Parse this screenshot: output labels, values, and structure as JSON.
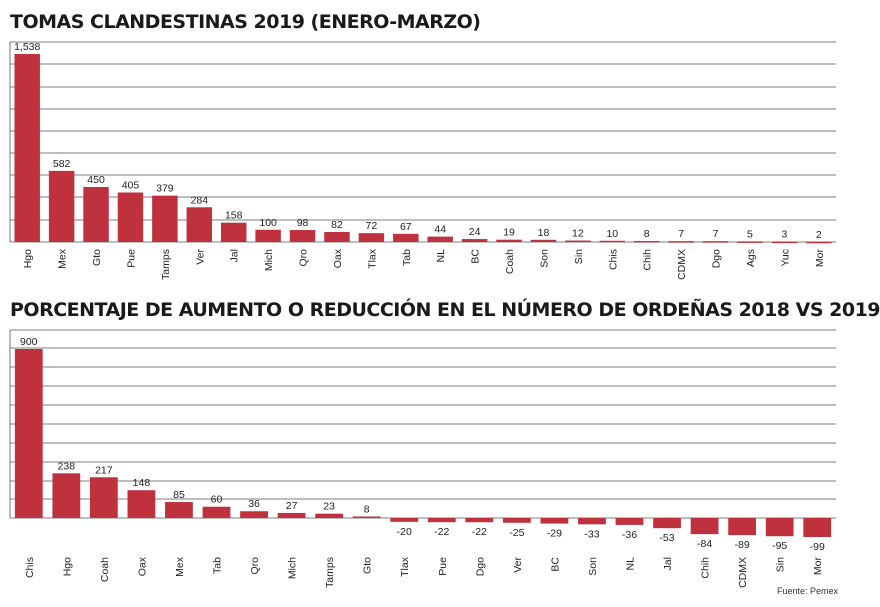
{
  "chart_data": [
    {
      "type": "bar",
      "title": "TOMAS CLANDESTINAS 2019 (ENERO-MARZO)",
      "categories": [
        "Hgo",
        "Mex",
        "Gto",
        "Pue",
        "Tamps",
        "Ver",
        "Jal",
        "Mich",
        "Qro",
        "Oax",
        "Tlax",
        "Tab",
        "NL",
        "BC",
        "Coah",
        "Son",
        "Sin",
        "Chis",
        "Chih",
        "CDMX",
        "Dgo",
        "Ags",
        "Yuc",
        "Mor"
      ],
      "values": [
        1538,
        582,
        450,
        405,
        379,
        284,
        158,
        100,
        98,
        82,
        72,
        67,
        44,
        24,
        19,
        18,
        12,
        10,
        8,
        7,
        7,
        5,
        3,
        2
      ],
      "value_labels": [
        "1,538",
        "582",
        "450",
        "405",
        "379",
        "284",
        "158",
        "100",
        "98",
        "82",
        "72",
        "67",
        "44",
        "24",
        "19",
        "18",
        "12",
        "10",
        "8",
        "7",
        "7",
        "5",
        "3",
        "2"
      ],
      "ylim": [
        0,
        1538
      ],
      "grid": true,
      "bar_color": "#c0313e"
    },
    {
      "type": "bar",
      "title": "PORCENTAJE DE AUMENTO O REDUCCIÓN EN EL NÚMERO DE ORDEÑAS 2018 VS 2019",
      "categories": [
        "Chis",
        "Hgo",
        "Coah",
        "Oax",
        "Mex",
        "Tab",
        "Qro",
        "Mich",
        "Tamps",
        "Gto",
        "Tlax",
        "Pue",
        "Dgo",
        "Ver",
        "BC",
        "Son",
        "NL",
        "Jal",
        "Chih",
        "CDMX",
        "Sin",
        "Mor"
      ],
      "values": [
        900,
        238,
        217,
        148,
        85,
        60,
        36,
        27,
        23,
        8,
        -20,
        -22,
        -22,
        -25,
        -29,
        -33,
        -36,
        -53,
        -84,
        -89,
        -95,
        -99
      ],
      "value_labels": [
        "900",
        "238",
        "217",
        "148",
        "85",
        "60",
        "36",
        "27",
        "23",
        "8",
        "-20",
        "-22",
        "-22",
        "-25",
        "-29",
        "-33",
        "-36",
        "-53",
        "-84",
        "-89",
        "-95",
        "-99"
      ],
      "ylim": [
        -99,
        900
      ],
      "grid": true,
      "bar_color": "#c0313e"
    }
  ],
  "source": "Fuente: Pemex"
}
